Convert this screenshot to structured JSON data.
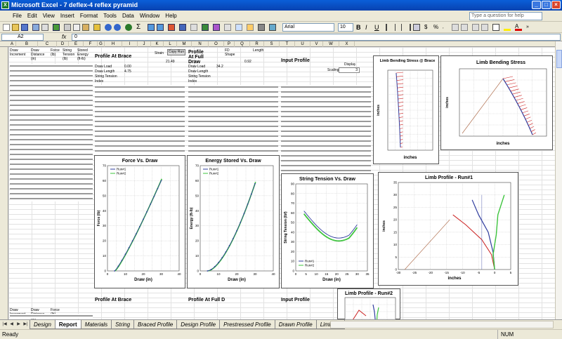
{
  "window": {
    "title": "Microsoft Excel - 7 deflex-4 reflex pyramid",
    "min": "_",
    "max": "□",
    "close": "×"
  },
  "menu": {
    "items": [
      "File",
      "Edit",
      "View",
      "Insert",
      "Format",
      "Tools",
      "Data",
      "Window",
      "Help"
    ],
    "help_placeholder": "Type a question for help"
  },
  "toolbar": {
    "font": "Arial",
    "size": "10"
  },
  "formula_bar": {
    "cell": "A2",
    "fx": "fx",
    "value": "0"
  },
  "sheet": {
    "columns": [
      "A",
      "B",
      "C",
      "D",
      "E",
      "F",
      "G",
      "H",
      "I",
      "J",
      "K",
      "L",
      "M",
      "N",
      "O",
      "P",
      "Q",
      "R",
      "S",
      "T",
      "U",
      "V",
      "W",
      "X"
    ],
    "draw_table": {
      "headers": [
        "Draw Increment",
        "Draw Distance (in)",
        "Force (lb)",
        "String Tension (lb)",
        "Stored Energy (ft-lb)"
      ]
    },
    "blocks": {
      "profile_brace": "Profile At Brace",
      "profile_full_draw": "Profile At Full Draw",
      "input_profile": "Input Profile",
      "profile_brace_2": "Profile At Brace",
      "profile_full_draw_2": "Profile At Full D",
      "input_profile_2": "Input Profile",
      "copy_run": "Copy Run",
      "draw_load": "Draw Load",
      "draw_length": "Draw Length",
      "string_tension": "String Tension",
      "index": "Index",
      "draw_length_val": "4.75",
      "draw_load_val": "0.00",
      "brace_val": "21.49",
      "fulldraw_val": "34.2",
      "fd_val": "0.92",
      "shape_label": "FD Shape",
      "strain_label": "Strain",
      "length_label": "Length",
      "display_label": "Display",
      "scaling_label": "Scaling",
      "scaling_val": "3"
    }
  },
  "charts": {
    "force_draw": {
      "title": "Force Vs. Draw",
      "xlabel": "Draw (in)",
      "ylabel": "Force (lb)"
    },
    "energy_draw": {
      "title": "Energy Stored Vs. Draw",
      "xlabel": "Draw (in)",
      "ylabel": "Energy (ft-lb)"
    },
    "tension_draw": {
      "title": "String Tension Vs. Draw",
      "xlabel": "Draw (in)",
      "ylabel": "String Tension (lbf)"
    },
    "limb_profile": {
      "title": "Limb Profile - Run#1",
      "xlabel": "inches",
      "ylabel": "inches"
    },
    "limb_bending_brace": {
      "title": "Limb Bending Stress @ Brace",
      "xlabel": "inches",
      "ylabel": "inches"
    },
    "limb_bending": {
      "title": "Limb Bending Stress",
      "xlabel": "inches",
      "ylabel": "inches"
    },
    "limb_profile_2": {
      "title": "Limb Profile - Run#2"
    },
    "series": [
      "Run#1",
      "Run#2"
    ],
    "colors": {
      "run1": "#2f3c9e",
      "run2": "#3ec43e",
      "red": "#cc2222",
      "brown": "#b07050"
    },
    "ticks": {
      "force": [
        "0",
        "10",
        "20",
        "30",
        "40",
        "50",
        "60",
        "70"
      ],
      "draw": [
        "0",
        "10",
        "20",
        "30",
        "40"
      ],
      "tension": [
        "0",
        "10",
        "20",
        "30",
        "40",
        "50",
        "60",
        "70",
        "80",
        "90"
      ],
      "tensionx": [
        "0",
        "5",
        "10",
        "15",
        "20",
        "25",
        "30",
        "35"
      ],
      "profx": [
        "-30",
        "-25",
        "-20",
        "-15",
        "-10",
        "-5",
        "0",
        "5"
      ],
      "profy": [
        "0",
        "5",
        "10",
        "15",
        "20",
        "25",
        "30",
        "35"
      ]
    }
  },
  "tabs": [
    "Design",
    "Report",
    "Materials",
    "String",
    "Braced Profile",
    "Design Profile",
    "Prestressed Profile",
    "Drawn Profile",
    "Limb Se"
  ],
  "active_tab": "Report",
  "status": {
    "ready": "Ready",
    "num": "NUM"
  }
}
